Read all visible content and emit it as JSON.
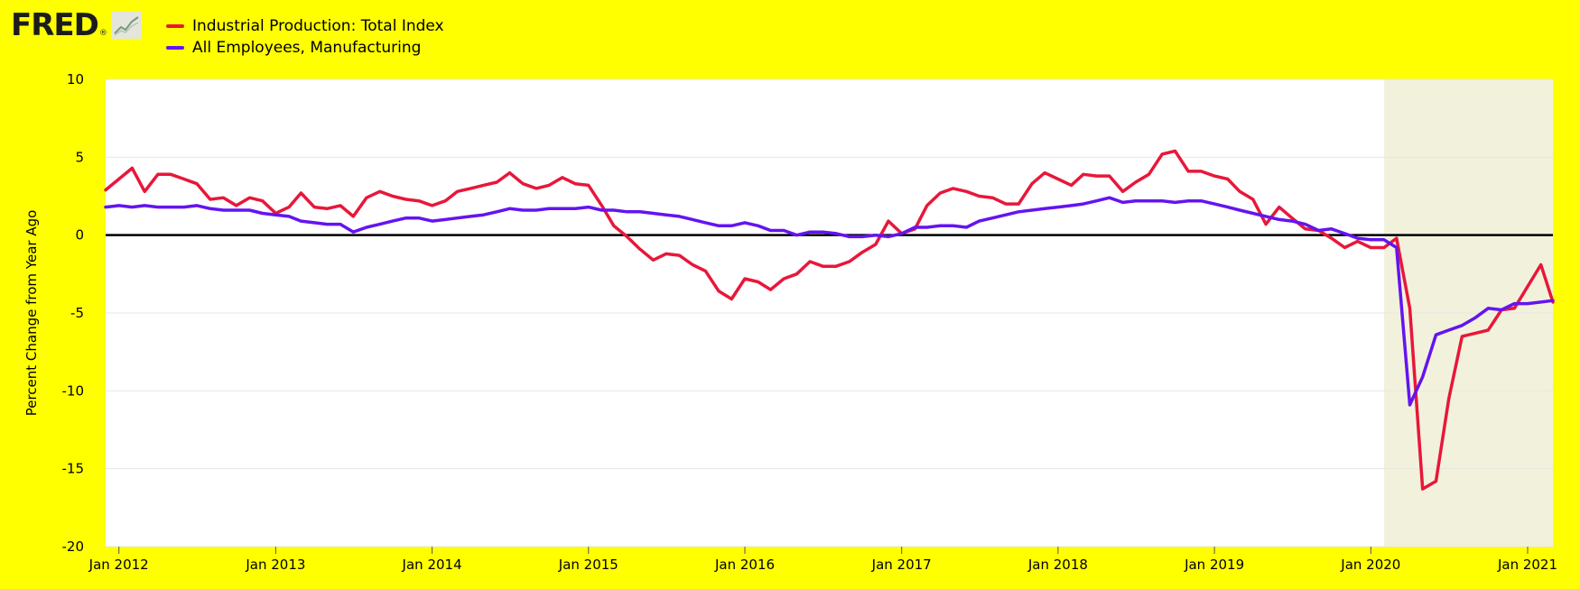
{
  "logo": {
    "text": "FRED",
    "reg": "®",
    "icon": "line-chart-icon"
  },
  "colors": {
    "background": "#ffff00",
    "plot_background": "#ffffff",
    "recession_shade": "#f2f2dc",
    "grid": "#e6e6e6",
    "zero_line": "#000000"
  },
  "chart_data": {
    "type": "line",
    "title": "",
    "xlabel": "",
    "ylabel": "Percent Change from Year Ago",
    "xlim": [
      "2011-12-01",
      "2021-03-01"
    ],
    "ylim": [
      -20,
      10
    ],
    "yticks": [
      10,
      5,
      0,
      -5,
      -10,
      -15,
      -20
    ],
    "xticks": [
      {
        "date": "2012-01-01",
        "label": "Jan 2012"
      },
      {
        "date": "2013-01-01",
        "label": "Jan 2013"
      },
      {
        "date": "2014-01-01",
        "label": "Jan 2014"
      },
      {
        "date": "2015-01-01",
        "label": "Jan 2015"
      },
      {
        "date": "2016-01-01",
        "label": "Jan 2016"
      },
      {
        "date": "2017-01-01",
        "label": "Jan 2017"
      },
      {
        "date": "2018-01-01",
        "label": "Jan 2018"
      },
      {
        "date": "2019-01-01",
        "label": "Jan 2019"
      },
      {
        "date": "2020-01-01",
        "label": "Jan 2020"
      },
      {
        "date": "2021-01-01",
        "label": "Jan 2021"
      }
    ],
    "grid": "horizontal",
    "legend_position": "top-left",
    "recession": {
      "start": "2020-02-01",
      "end": "2021-03-01"
    },
    "series": [
      {
        "name": "Industrial Production: Total Index",
        "color": "#e8173a",
        "start": "2011-12-01",
        "values": [
          2.9,
          3.6,
          4.3,
          2.8,
          3.9,
          3.9,
          3.6,
          3.3,
          2.3,
          2.4,
          1.9,
          2.4,
          2.2,
          1.4,
          1.8,
          2.7,
          1.8,
          1.7,
          1.9,
          1.2,
          2.4,
          2.8,
          2.5,
          2.3,
          2.2,
          1.9,
          2.2,
          2.8,
          3.0,
          3.2,
          3.4,
          4.0,
          3.3,
          3.0,
          3.2,
          3.7,
          3.3,
          3.2,
          1.9,
          0.6,
          -0.1,
          -0.9,
          -1.6,
          -1.2,
          -1.3,
          -1.9,
          -2.3,
          -3.6,
          -4.1,
          -2.8,
          -3.0,
          -3.5,
          -2.8,
          -2.5,
          -1.7,
          -2.0,
          -2.0,
          -1.7,
          -1.1,
          -0.6,
          0.9,
          0.1,
          0.4,
          1.9,
          2.7,
          3.0,
          2.8,
          2.5,
          2.4,
          2.0,
          2.0,
          3.3,
          4.0,
          3.6,
          3.2,
          3.9,
          3.8,
          3.8,
          2.8,
          3.4,
          3.9,
          5.2,
          5.4,
          4.1,
          4.1,
          3.8,
          3.6,
          2.8,
          2.3,
          0.7,
          1.8,
          1.1,
          0.4,
          0.3,
          -0.2,
          -0.8,
          -0.4,
          -0.8,
          -0.8,
          -0.2,
          -4.7,
          -16.3,
          -15.8,
          -10.5,
          -6.5,
          -6.3,
          -6.1,
          -4.8,
          -4.7,
          -3.3,
          -1.9,
          -4.3
        ]
      },
      {
        "name": "All Employees, Manufacturing",
        "color": "#6414f0",
        "start": "2011-12-01",
        "values": [
          1.8,
          1.9,
          1.8,
          1.9,
          1.8,
          1.8,
          1.8,
          1.9,
          1.7,
          1.6,
          1.6,
          1.6,
          1.4,
          1.3,
          1.2,
          0.9,
          0.8,
          0.7,
          0.7,
          0.2,
          0.5,
          0.7,
          0.9,
          1.1,
          1.1,
          0.9,
          1.0,
          1.1,
          1.2,
          1.3,
          1.5,
          1.7,
          1.6,
          1.6,
          1.7,
          1.7,
          1.7,
          1.8,
          1.6,
          1.6,
          1.5,
          1.5,
          1.4,
          1.3,
          1.2,
          1.0,
          0.8,
          0.6,
          0.6,
          0.8,
          0.6,
          0.3,
          0.3,
          0.0,
          0.2,
          0.2,
          0.1,
          -0.1,
          -0.1,
          0.0,
          -0.1,
          0.1,
          0.5,
          0.5,
          0.6,
          0.6,
          0.5,
          0.9,
          1.1,
          1.3,
          1.5,
          1.6,
          1.7,
          1.8,
          1.9,
          2.0,
          2.2,
          2.4,
          2.1,
          2.2,
          2.2,
          2.2,
          2.1,
          2.2,
          2.2,
          2.0,
          1.8,
          1.6,
          1.4,
          1.2,
          1.0,
          0.9,
          0.7,
          0.3,
          0.4,
          0.1,
          -0.2,
          -0.3,
          -0.3,
          -0.8,
          -10.9,
          -9.1,
          -6.4,
          -6.1,
          -5.8,
          -5.3,
          -4.7,
          -4.8,
          -4.4,
          -4.4,
          -4.3,
          -4.2
        ]
      }
    ]
  }
}
